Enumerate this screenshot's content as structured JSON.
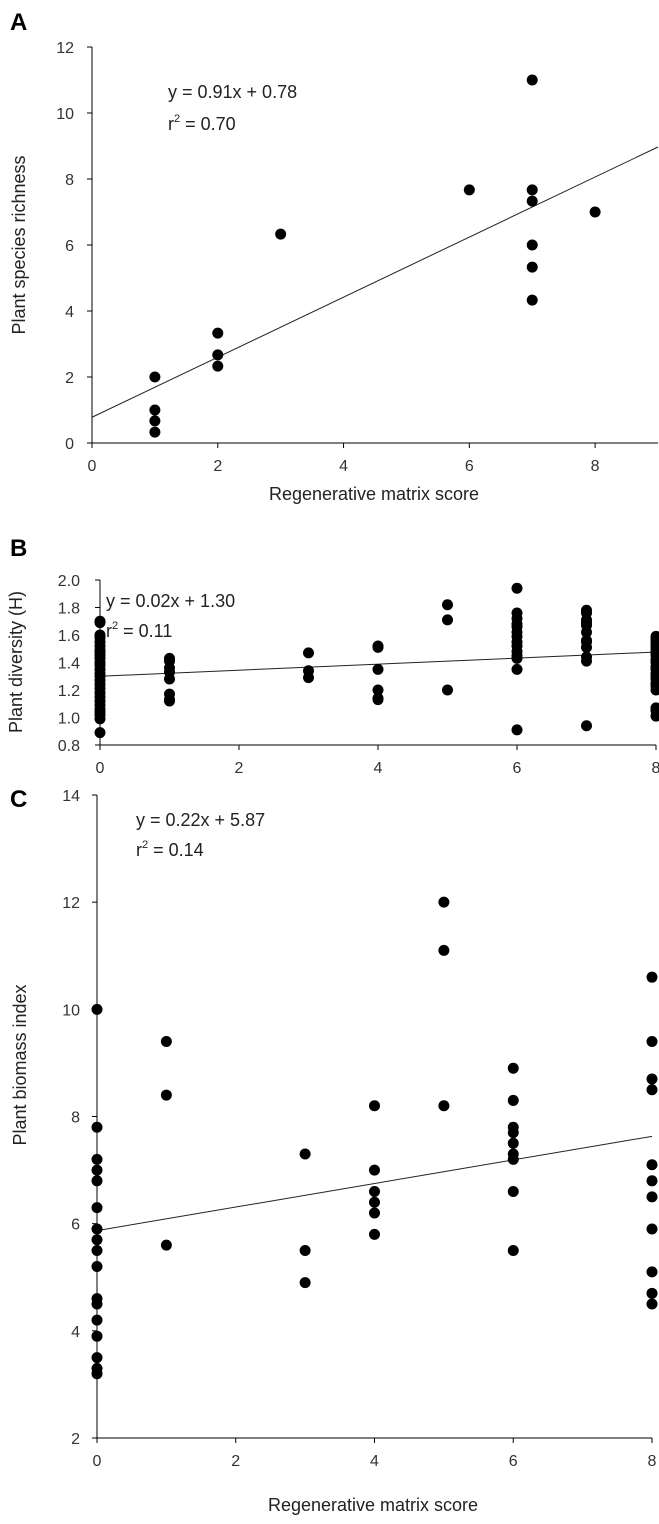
{
  "chart_data": [
    {
      "type": "scatter",
      "panel_label": "A",
      "ylabel": "Plant species richness",
      "xlabel": "Regenerative matrix score",
      "xlim": [
        0,
        9
      ],
      "ylim": [
        0,
        12
      ],
      "xticks": [
        "0",
        "2",
        "4",
        "6",
        "8"
      ],
      "yticks": [
        "0",
        "2",
        "4",
        "6",
        "8",
        "10",
        "12"
      ],
      "equation": "y = 0.91x + 0.78",
      "r2_label": "r",
      "r2_value": " = 0.70",
      "regression": {
        "slope": 0.91,
        "intercept": 0.78,
        "x_range": [
          0,
          9
        ]
      },
      "points": [
        [
          1,
          2.0
        ],
        [
          1,
          1.0
        ],
        [
          1,
          0.67
        ],
        [
          1,
          0.33
        ],
        [
          2,
          3.33
        ],
        [
          2,
          2.67
        ],
        [
          2,
          2.33
        ],
        [
          3,
          6.33
        ],
        [
          6,
          7.67
        ],
        [
          7,
          11.0
        ],
        [
          7,
          7.67
        ],
        [
          7,
          7.33
        ],
        [
          7,
          6.0
        ],
        [
          7,
          5.33
        ],
        [
          7,
          4.33
        ],
        [
          8,
          7.0
        ]
      ]
    },
    {
      "type": "scatter",
      "panel_label": "B",
      "ylabel": "Plant diversity (H)",
      "xlabel": "",
      "xlim": [
        0,
        8
      ],
      "ylim": [
        0.8,
        2.0
      ],
      "xticks": [
        "0",
        "2",
        "4",
        "6",
        "8"
      ],
      "yticks": [
        "0.8",
        "1.0",
        "1.2",
        "1.4",
        "1.6",
        "1.8",
        "2.0"
      ],
      "equation": "y = 0.02x + 1.30",
      "r2_label": "r",
      "r2_value": " = 0.11",
      "regression": {
        "slope": 0.022,
        "intercept": 1.3,
        "x_range": [
          0,
          8
        ]
      },
      "points": [
        [
          0,
          1.7
        ],
        [
          0,
          1.69
        ],
        [
          0,
          1.6
        ],
        [
          0,
          1.58
        ],
        [
          0,
          1.55
        ],
        [
          0,
          1.52
        ],
        [
          0,
          1.49
        ],
        [
          0,
          1.47
        ],
        [
          0,
          1.45
        ],
        [
          0,
          1.43
        ],
        [
          0,
          1.4
        ],
        [
          0,
          1.38
        ],
        [
          0,
          1.35
        ],
        [
          0,
          1.32
        ],
        [
          0,
          1.3
        ],
        [
          0,
          1.27
        ],
        [
          0,
          1.24
        ],
        [
          0,
          1.21
        ],
        [
          0,
          1.18
        ],
        [
          0,
          1.15
        ],
        [
          0,
          1.12
        ],
        [
          0,
          1.09
        ],
        [
          0,
          1.06
        ],
        [
          0,
          1.04
        ],
        [
          0,
          1.02
        ],
        [
          0,
          0.99
        ],
        [
          0,
          0.89
        ],
        [
          1,
          1.43
        ],
        [
          1,
          1.41
        ],
        [
          1,
          1.36
        ],
        [
          1,
          1.33
        ],
        [
          1,
          1.28
        ],
        [
          1,
          1.17
        ],
        [
          1,
          1.13
        ],
        [
          1,
          1.12
        ],
        [
          3,
          1.47
        ],
        [
          3,
          1.34
        ],
        [
          3,
          1.29
        ],
        [
          4,
          1.52
        ],
        [
          4,
          1.51
        ],
        [
          4,
          1.35
        ],
        [
          4,
          1.2
        ],
        [
          4,
          1.14
        ],
        [
          4,
          1.13
        ],
        [
          5,
          1.82
        ],
        [
          5,
          1.71
        ],
        [
          5,
          1.2
        ],
        [
          6,
          1.94
        ],
        [
          6,
          1.76
        ],
        [
          6,
          1.72
        ],
        [
          6,
          1.68
        ],
        [
          6,
          1.66
        ],
        [
          6,
          1.62
        ],
        [
          6,
          1.59
        ],
        [
          6,
          1.55
        ],
        [
          6,
          1.52
        ],
        [
          6,
          1.48
        ],
        [
          6,
          1.45
        ],
        [
          6,
          1.43
        ],
        [
          6,
          1.35
        ],
        [
          6,
          0.91
        ],
        [
          7,
          1.78
        ],
        [
          7,
          1.76
        ],
        [
          7,
          1.71
        ],
        [
          7,
          1.69
        ],
        [
          7,
          1.67
        ],
        [
          7,
          1.62
        ],
        [
          7,
          1.56
        ],
        [
          7,
          1.55
        ],
        [
          7,
          1.51
        ],
        [
          7,
          1.44
        ],
        [
          7,
          1.41
        ],
        [
          7,
          0.94
        ],
        [
          8,
          1.59
        ],
        [
          8,
          1.57
        ],
        [
          8,
          1.55
        ],
        [
          8,
          1.53
        ],
        [
          8,
          1.51
        ],
        [
          8,
          1.49
        ],
        [
          8,
          1.47
        ],
        [
          8,
          1.45
        ],
        [
          8,
          1.42
        ],
        [
          8,
          1.4
        ],
        [
          8,
          1.37
        ],
        [
          8,
          1.35
        ],
        [
          8,
          1.32
        ],
        [
          8,
          1.3
        ],
        [
          8,
          1.28
        ],
        [
          8,
          1.25
        ],
        [
          8,
          1.23
        ],
        [
          8,
          1.2
        ],
        [
          8,
          1.07
        ],
        [
          8,
          1.05
        ],
        [
          8,
          1.01
        ]
      ]
    },
    {
      "type": "scatter",
      "panel_label": "C",
      "ylabel": "Plant biomass index",
      "xlabel": "Regenerative matrix score",
      "xlim": [
        0,
        8
      ],
      "ylim": [
        2,
        14
      ],
      "xticks": [
        "0",
        "2",
        "4",
        "6",
        "8"
      ],
      "yticks": [
        "2",
        "4",
        "6",
        "8",
        "10",
        "12",
        "14"
      ],
      "equation": "y = 0.22x + 5.87",
      "r2_label": "r",
      "r2_value": " = 0.14",
      "regression": {
        "slope": 0.22,
        "intercept": 5.87,
        "x_range": [
          0,
          8
        ]
      },
      "points": [
        [
          0,
          10.0
        ],
        [
          0,
          7.8
        ],
        [
          0,
          7.2
        ],
        [
          0,
          7.0
        ],
        [
          0,
          6.8
        ],
        [
          0,
          6.3
        ],
        [
          0,
          5.9
        ],
        [
          0,
          5.7
        ],
        [
          0,
          5.5
        ],
        [
          0,
          5.2
        ],
        [
          0,
          4.6
        ],
        [
          0,
          4.5
        ],
        [
          0,
          4.2
        ],
        [
          0,
          3.9
        ],
        [
          0,
          3.5
        ],
        [
          0,
          3.3
        ],
        [
          0,
          3.2
        ],
        [
          1,
          9.4
        ],
        [
          1,
          8.4
        ],
        [
          1,
          5.6
        ],
        [
          3,
          7.3
        ],
        [
          3,
          5.5
        ],
        [
          3,
          4.9
        ],
        [
          4,
          8.2
        ],
        [
          4,
          7.0
        ],
        [
          4,
          6.6
        ],
        [
          4,
          6.4
        ],
        [
          4,
          6.2
        ],
        [
          4,
          5.8
        ],
        [
          5,
          12.0
        ],
        [
          5,
          11.1
        ],
        [
          5,
          8.2
        ],
        [
          6,
          8.9
        ],
        [
          6,
          8.3
        ],
        [
          6,
          7.8
        ],
        [
          6,
          7.7
        ],
        [
          6,
          7.5
        ],
        [
          6,
          7.3
        ],
        [
          6,
          7.2
        ],
        [
          6,
          6.6
        ],
        [
          6,
          5.5
        ],
        [
          8,
          10.6
        ],
        [
          8,
          9.4
        ],
        [
          8,
          8.7
        ],
        [
          8,
          8.5
        ],
        [
          8,
          7.1
        ],
        [
          8,
          6.8
        ],
        [
          8,
          6.5
        ],
        [
          8,
          5.9
        ],
        [
          8,
          5.1
        ],
        [
          8,
          4.7
        ],
        [
          8,
          4.5
        ]
      ]
    }
  ]
}
